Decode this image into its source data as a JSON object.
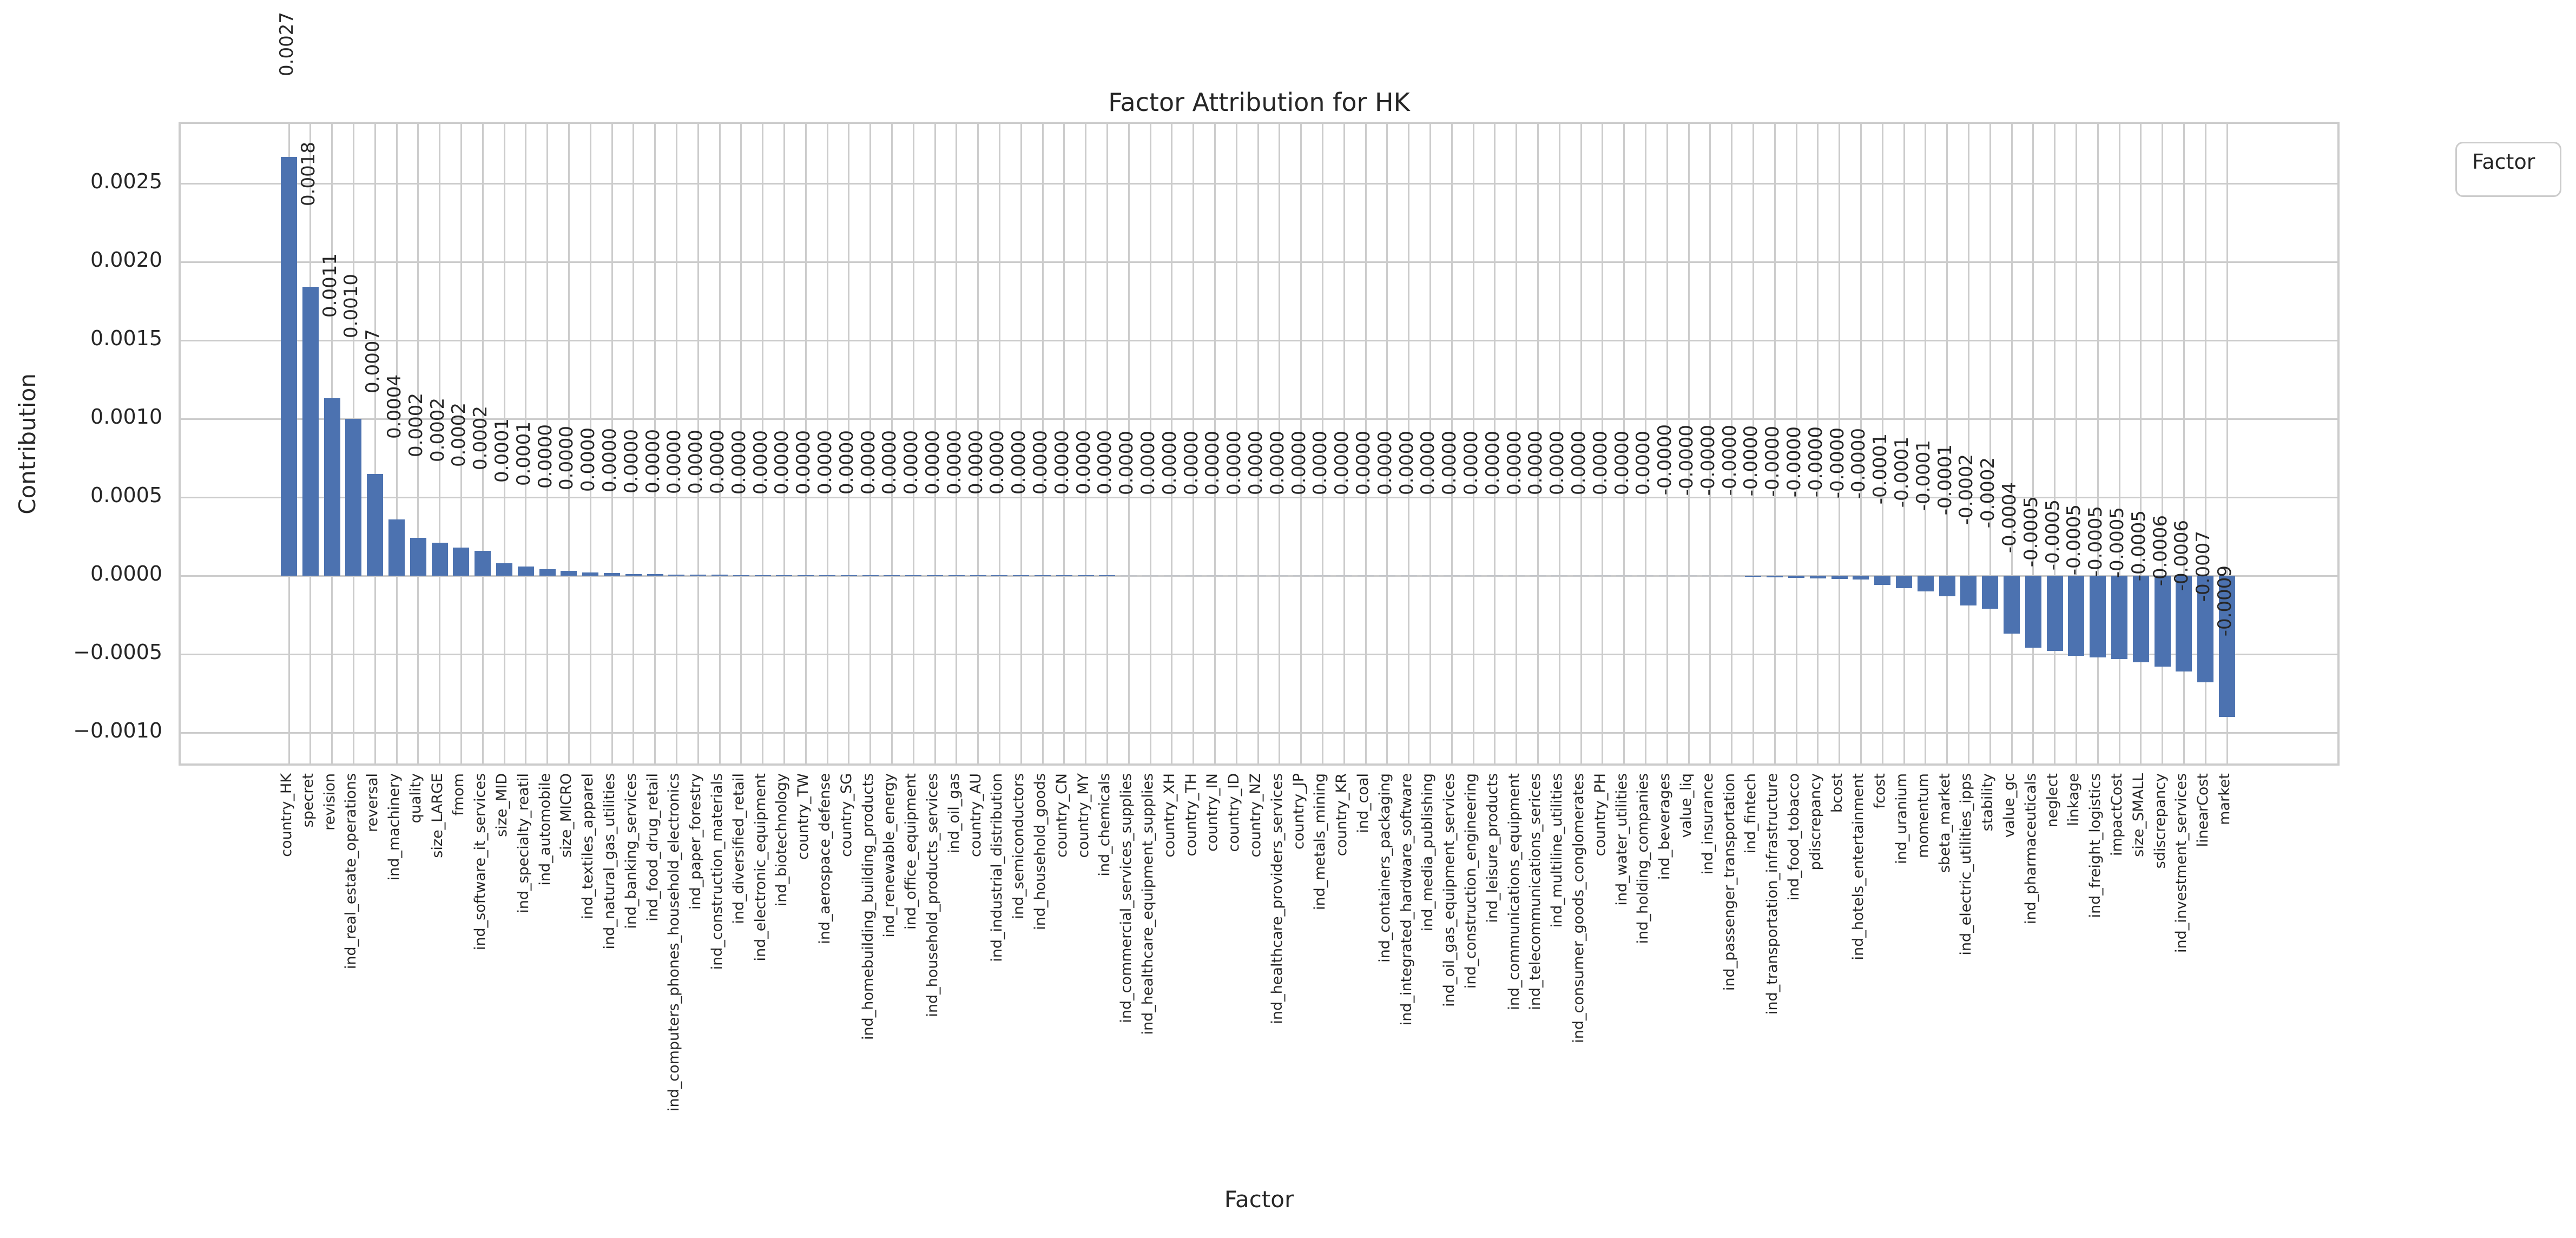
{
  "chart_data": {
    "type": "bar",
    "title": "Factor Attribution for HK",
    "xlabel": "Factor",
    "ylabel": "Contribution",
    "legend_title": "Factor",
    "legend_position": "upper right, outside axes",
    "grid": true,
    "colors": {
      "bar": "#4c72b0",
      "grid": "#cccccc",
      "text": "#262626"
    },
    "ylim": [
      -0.00122,
      0.00288
    ],
    "ytick_labels": [
      "0.0025",
      "0.0020",
      "0.0015",
      "0.0010",
      "0.0005",
      "0.0000",
      "−0.0005",
      "−0.0010"
    ],
    "ytick_values": [
      0.0025,
      0.002,
      0.0015,
      0.001,
      0.0005,
      0.0,
      -0.0005,
      -0.001
    ],
    "categories": [
      "country_HK",
      "specret",
      "revision",
      "ind_real_estate_operations",
      "reversal",
      "ind_machinery",
      "quality",
      "size_LARGE",
      "fmom",
      "ind_software_it_services",
      "size_MID",
      "ind_specialty_reatil",
      "ind_automobile",
      "size_MICRO",
      "ind_textiles_apparel",
      "ind_natural_gas_utilities",
      "ind_banking_services",
      "ind_food_drug_retail",
      "ind_computers_phones_household_electronics",
      "ind_paper_forestry",
      "ind_construction_materials",
      "ind_diversified_retail",
      "ind_electronic_equipment",
      "ind_biotechnology",
      "country_TW",
      "ind_aerospace_defense",
      "country_SG",
      "ind_homebuilding_building_products",
      "ind_renewable_energy",
      "ind_office_equipment",
      "ind_household_products_services",
      "ind_oil_gas",
      "country_AU",
      "ind_industrial_distribution",
      "ind_semiconductors",
      "ind_household_goods",
      "country_CN",
      "country_MY",
      "ind_chemicals",
      "ind_commercial_services_supplies",
      "ind_healthcare_equipment_supplies",
      "country_XH",
      "country_TH",
      "country_IN",
      "country_ID",
      "country_NZ",
      "ind_healthcare_providers_services",
      "country_JP",
      "ind_metals_mining",
      "country_KR",
      "ind_coal",
      "ind_containers_packaging",
      "ind_integrated_hardware_software",
      "ind_media_publishing",
      "ind_oil_gas_equipment_services",
      "ind_construction_engineering",
      "ind_leisure_products",
      "ind_communications_equipment",
      "ind_telecommunications_serices",
      "ind_multiline_utilities",
      "ind_consumer_goods_conglomerates",
      "country_PH",
      "ind_water_utilities",
      "ind_holding_companies",
      "ind_beverages",
      "value_liq",
      "ind_insurance",
      "ind_passenger_transportation",
      "ind_fintech",
      "ind_transportation_infrastructure",
      "ind_food_tobacco",
      "pdiscrepancy",
      "bcost",
      "ind_hotels_entertainment",
      "fcost",
      "ind_uranium",
      "momentum",
      "sbeta_market",
      "ind_electric_utilities_ipps",
      "stability",
      "value_gc",
      "ind_pharmaceuticals",
      "neglect",
      "linkage",
      "ind_freight_logistics",
      "impactCost",
      "size_SMALL",
      "sdiscrepancy",
      "ind_investment_services",
      "linearCost",
      "market"
    ],
    "values": [
      0.00267,
      0.00184,
      0.00113,
      0.001,
      0.00065,
      0.00036,
      0.00024,
      0.00021,
      0.00018,
      0.00016,
      8e-05,
      6e-05,
      4e-05,
      3e-05,
      2.2e-05,
      1.6e-05,
      1.2e-05,
      1e-05,
      8e-06,
      7e-06,
      6e-06,
      5e-06,
      5e-06,
      4e-06,
      4e-06,
      4e-06,
      3e-06,
      3e-06,
      3e-06,
      3e-06,
      3e-06,
      2e-06,
      2e-06,
      2e-06,
      2e-06,
      2e-06,
      2e-06,
      2e-06,
      2e-06,
      1e-06,
      1e-06,
      1e-06,
      1e-06,
      1e-06,
      1e-06,
      1e-06,
      1e-06,
      1e-06,
      1e-06,
      1e-06,
      1e-06,
      1e-06,
      1e-06,
      1e-06,
      5e-07,
      5e-07,
      5e-07,
      5e-07,
      4e-07,
      4e-07,
      3e-07,
      3e-07,
      2e-07,
      2e-07,
      -2e-06,
      -3e-06,
      -4e-06,
      -5e-06,
      -6e-06,
      -1e-05,
      -1.3e-05,
      -1.6e-05,
      -2e-05,
      -2.5e-05,
      -6e-05,
      -8e-05,
      -0.0001,
      -0.00013,
      -0.00019,
      -0.00021,
      -0.00037,
      -0.00046,
      -0.00048,
      -0.00051,
      -0.00052,
      -0.00053,
      -0.00055,
      -0.00058,
      -0.00061,
      -0.00068,
      -0.0009
    ],
    "bar_labels": [
      "0.0027",
      "0.0018",
      "0.0011",
      "0.0010",
      "0.0007",
      "0.0004",
      "0.0002",
      "0.0002",
      "0.0002",
      "0.0002",
      "0.0001",
      "0.0001",
      "0.0000",
      "0.0000",
      "0.0000",
      "0.0000",
      "0.0000",
      "0.0000",
      "0.0000",
      "0.0000",
      "0.0000",
      "0.0000",
      "0.0000",
      "0.0000",
      "0.0000",
      "0.0000",
      "0.0000",
      "0.0000",
      "0.0000",
      "0.0000",
      "0.0000",
      "0.0000",
      "0.0000",
      "0.0000",
      "0.0000",
      "0.0000",
      "0.0000",
      "0.0000",
      "0.0000",
      "0.0000",
      "0.0000",
      "0.0000",
      "0.0000",
      "0.0000",
      "0.0000",
      "0.0000",
      "0.0000",
      "0.0000",
      "0.0000",
      "0.0000",
      "0.0000",
      "0.0000",
      "0.0000",
      "0.0000",
      "0.0000",
      "0.0000",
      "0.0000",
      "0.0000",
      "0.0000",
      "0.0000",
      "0.0000",
      "0.0000",
      "0.0000",
      "0.0000",
      "-0.0000",
      "-0.0000",
      "-0.0000",
      "-0.0000",
      "-0.0000",
      "-0.0000",
      "-0.0000",
      "-0.0000",
      "-0.0000",
      "-0.0000",
      "-0.0001",
      "-0.0001",
      "-0.0001",
      "-0.0001",
      "-0.0002",
      "-0.0002",
      "-0.0004",
      "-0.0005",
      "-0.0005",
      "-0.0005",
      "-0.0005",
      "-0.0005",
      "-0.0005",
      "-0.0006",
      "-0.0006",
      "-0.0007",
      "-0.0009"
    ]
  }
}
